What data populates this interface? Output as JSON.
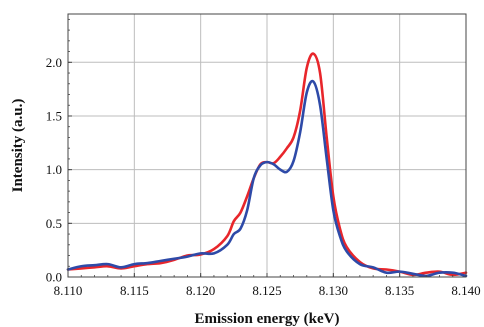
{
  "chart_data": {
    "type": "line",
    "title": "",
    "xlabel": "Emission energy (keV)",
    "ylabel": "Intensity (a.u.)",
    "xlim": [
      8.11,
      8.14
    ],
    "ylim": [
      0.0,
      2.45
    ],
    "x_ticks": [
      "8.110",
      "8.115",
      "8.120",
      "8.125",
      "8.130",
      "8.135",
      "8.140"
    ],
    "y_ticks": [
      "0.0",
      "0.5",
      "1.0",
      "1.5",
      "2.0"
    ],
    "grid": true,
    "legend": "none",
    "series": [
      {
        "color": "#e8262b",
        "x": [
          8.11,
          8.111,
          8.112,
          8.113,
          8.114,
          8.115,
          8.116,
          8.117,
          8.118,
          8.119,
          8.12,
          8.121,
          8.122,
          8.1225,
          8.123,
          8.1235,
          8.124,
          8.1245,
          8.125,
          8.1255,
          8.126,
          8.1265,
          8.127,
          8.1275,
          8.128,
          8.1285,
          8.129,
          8.1295,
          8.13,
          8.1305,
          8.131,
          8.132,
          8.133,
          8.134,
          8.135,
          8.136,
          8.137,
          8.138,
          8.139,
          8.14
        ],
        "y": [
          0.07,
          0.08,
          0.09,
          0.1,
          0.08,
          0.1,
          0.12,
          0.13,
          0.16,
          0.2,
          0.21,
          0.26,
          0.38,
          0.52,
          0.6,
          0.75,
          0.92,
          1.05,
          1.07,
          1.06,
          1.12,
          1.2,
          1.3,
          1.55,
          1.95,
          2.08,
          1.9,
          1.3,
          0.75,
          0.45,
          0.28,
          0.14,
          0.08,
          0.07,
          0.05,
          0.02,
          0.04,
          0.05,
          0.02,
          0.04
        ]
      },
      {
        "color": "#2e4aa8",
        "x": [
          8.11,
          8.111,
          8.112,
          8.113,
          8.114,
          8.115,
          8.116,
          8.117,
          8.118,
          8.119,
          8.12,
          8.121,
          8.122,
          8.1225,
          8.123,
          8.1235,
          8.124,
          8.1245,
          8.125,
          8.1255,
          8.126,
          8.1265,
          8.127,
          8.1275,
          8.128,
          8.1285,
          8.129,
          8.1295,
          8.13,
          8.1305,
          8.131,
          8.132,
          8.133,
          8.134,
          8.135,
          8.136,
          8.137,
          8.138,
          8.139,
          8.14
        ],
        "y": [
          0.07,
          0.1,
          0.11,
          0.12,
          0.09,
          0.12,
          0.13,
          0.15,
          0.17,
          0.19,
          0.22,
          0.22,
          0.3,
          0.4,
          0.45,
          0.62,
          0.92,
          1.04,
          1.07,
          1.05,
          1.0,
          0.98,
          1.08,
          1.35,
          1.72,
          1.82,
          1.6,
          1.1,
          0.62,
          0.38,
          0.24,
          0.12,
          0.09,
          0.04,
          0.05,
          0.03,
          0.01,
          0.04,
          0.04,
          0.01
        ]
      }
    ]
  }
}
